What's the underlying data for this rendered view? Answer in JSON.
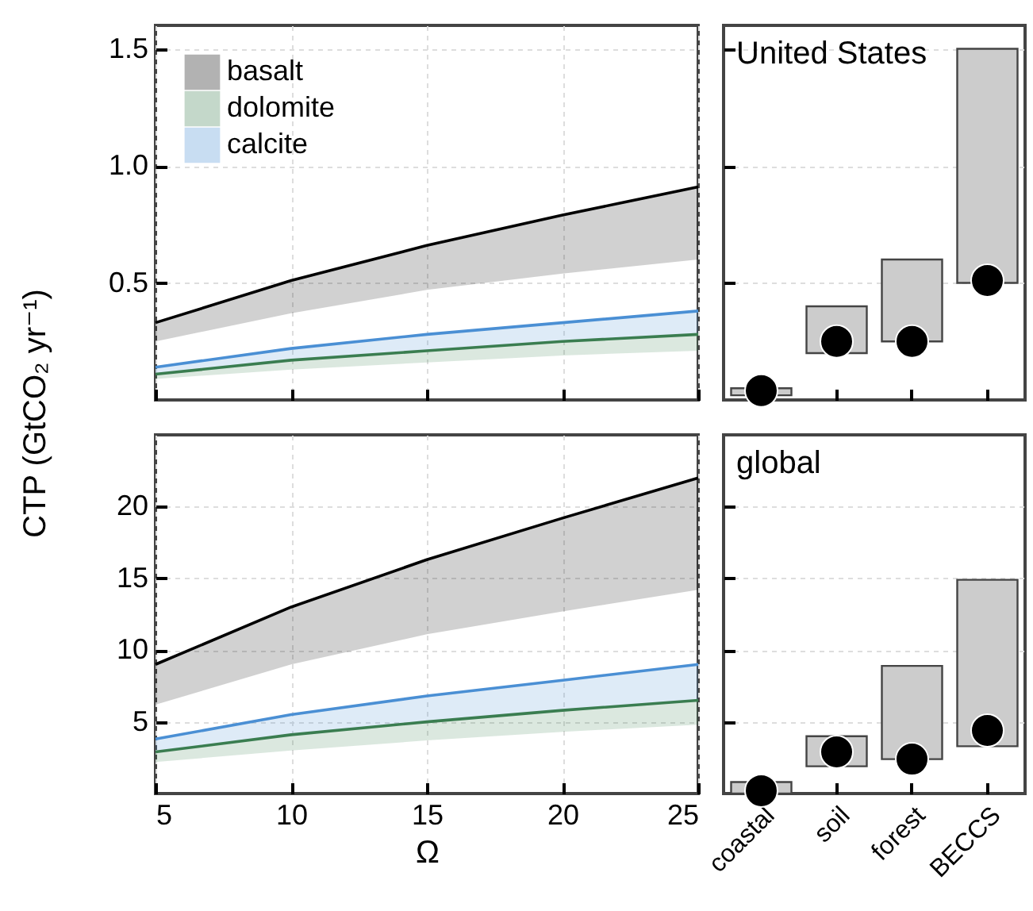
{
  "chart_data": [
    {
      "type": "line",
      "x": [
        5,
        10,
        15,
        20,
        25
      ],
      "xlim": [
        5,
        25
      ],
      "xticks": [
        5,
        10,
        15,
        20,
        25
      ],
      "ylim": [
        0,
        1.6
      ],
      "yticks": [
        0.5,
        {
          "value": 1,
          "label": "1.0"
        },
        1.5
      ],
      "grid": true,
      "legend": "top left",
      "tick_labels": "y",
      "marker": "none",
      "series": [
        {
          "name": "basalt",
          "color": "#000000",
          "values": [
            0.33,
            0.51,
            0.66,
            0.79,
            0.91
          ],
          "lower": [
            0.25,
            0.37,
            0.47,
            0.54,
            0.6
          ],
          "upper": [
            0.33,
            0.51,
            0.66,
            0.79,
            0.91
          ]
        },
        {
          "name": "dolomite",
          "color": "#3a7d50",
          "values": [
            0.11,
            0.17,
            0.21,
            0.25,
            0.28
          ],
          "lower": [
            0.09,
            0.13,
            0.16,
            0.19,
            0.21
          ],
          "upper": [
            0.11,
            0.17,
            0.21,
            0.25,
            0.28
          ]
        },
        {
          "name": "calcite",
          "color": "#4a8fd4",
          "values": [
            0.14,
            0.22,
            0.28,
            0.33,
            0.38
          ],
          "lower": [
            0.11,
            0.17,
            0.21,
            0.25,
            0.28
          ],
          "upper": [
            0.14,
            0.22,
            0.28,
            0.33,
            0.38
          ]
        }
      ]
    },
    {
      "type": "bar",
      "categories": [
        "coastal",
        "soil",
        "forest",
        "BECCS"
      ],
      "ylim": [
        0,
        1.6
      ],
      "yticks": [
        0.5,
        1,
        1.5
      ],
      "grid": "y",
      "tick_labels": false,
      "annotations": [
        "United States"
      ],
      "series": [
        {
          "type": "bar",
          "color": "#cccccc",
          "values": [
            0.03,
            0.2,
            0.35,
            1.0
          ],
          "base": [
            0.02,
            0.2,
            0.25,
            0.5
          ]
        },
        {
          "type": "scatter",
          "color": "#000000",
          "x": [
            "coastal",
            "soil",
            "forest",
            "BECCS"
          ],
          "values": [
            0.04,
            0.25,
            0.25,
            0.51
          ]
        }
      ]
    },
    {
      "type": "line",
      "x": [
        5,
        10,
        15,
        20,
        25
      ],
      "xlim": [
        5,
        25
      ],
      "xticks": [
        5,
        10,
        15,
        20,
        25
      ],
      "ylim": [
        0,
        25
      ],
      "yticks": [
        5,
        10,
        15,
        20
      ],
      "grid": true,
      "marker": "none",
      "xlabel": "Ω",
      "ylabel": "CTP (GtCO₂ yr⁻¹)",
      "series": [
        {
          "color": "#000000",
          "values": [
            9,
            13,
            16.3,
            19.2,
            22
          ],
          "lower": [
            6.2,
            9,
            11.1,
            12.7,
            14.2
          ],
          "upper": [
            9,
            13,
            16.3,
            19.2,
            22
          ]
        },
        {
          "color": "#3a7d50",
          "values": [
            2.9,
            4.1,
            5,
            5.8,
            6.5
          ],
          "lower": [
            2.2,
            3,
            3.7,
            4.3,
            4.8
          ],
          "upper": [
            2.9,
            4.1,
            5,
            5.8,
            6.5
          ]
        },
        {
          "color": "#4a8fd4",
          "values": [
            3.8,
            5.5,
            6.8,
            7.9,
            9
          ],
          "lower": [
            2.9,
            4.1,
            5,
            5.8,
            6.5
          ],
          "upper": [
            3.8,
            5.5,
            6.8,
            7.9,
            9
          ]
        }
      ]
    },
    {
      "type": "bar",
      "categories": [
        "coastal",
        "soil",
        "forest",
        "BECCS"
      ],
      "ylim": [
        0,
        25
      ],
      "yticks": [
        5,
        10,
        15,
        20
      ],
      "grid": "y",
      "tick_labels": "x",
      "annotations": [
        "global"
      ],
      "series": [
        {
          "type": "bar",
          "color": "#cccccc",
          "values": [
            0.8,
            2.1,
            6.5,
            11.6
          ],
          "base": [
            0,
            1.9,
            2.4,
            3.3
          ]
        },
        {
          "type": "scatter",
          "color": "#000000",
          "x": [
            "coastal",
            "soil",
            "forest",
            "BECCS"
          ],
          "values": [
            0.2,
            2.9,
            2.4,
            4.4
          ]
        }
      ]
    }
  ]
}
